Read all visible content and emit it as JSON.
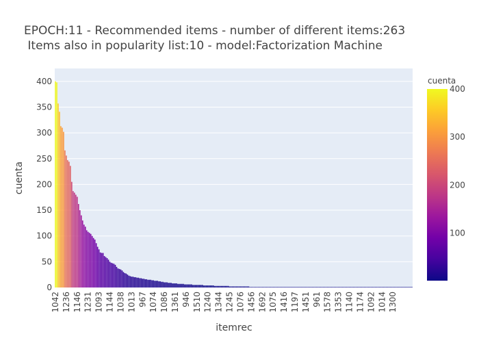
{
  "chart_data": {
    "type": "bar",
    "title_lines": [
      "EPOCH:11 - Recommended items - number of different items:263",
      " Items also in popularity list:10 - model:Factorization Machine"
    ],
    "xlabel": "itemrec",
    "ylabel": "cuenta",
    "ylim": [
      0,
      425
    ],
    "y_ticks": [
      0,
      50,
      100,
      150,
      200,
      250,
      300,
      350,
      400
    ],
    "x_tick_labels": [
      "1042",
      "1236",
      "1146",
      "1231",
      "1093",
      "1144",
      "1038",
      "1013",
      "967",
      "1074",
      "1086",
      "1361",
      "946",
      "1510",
      "1240",
      "1344",
      "1245",
      "1076",
      "1456",
      "1692",
      "1075",
      "1416",
      "1197",
      "1451",
      "961",
      "1578",
      "1353",
      "1140",
      "1174",
      "1092",
      "1014",
      "1300"
    ],
    "n_bars": 263,
    "head_values": [
      400,
      398,
      357,
      341,
      313,
      310,
      302,
      266,
      256,
      247,
      244,
      236,
      205,
      187,
      184,
      180,
      176,
      162,
      150,
      140,
      130,
      122,
      118,
      111,
      108,
      106,
      104,
      100,
      96,
      93,
      86,
      79,
      74,
      68,
      67,
      67,
      61,
      59,
      57,
      54,
      50,
      48,
      47,
      46,
      44,
      40,
      37,
      36,
      35,
      33,
      30,
      28,
      27,
      25,
      23,
      22,
      21,
      21,
      20,
      20,
      19,
      19,
      18,
      18,
      17,
      17,
      16,
      16,
      15,
      15,
      15,
      14,
      14,
      13,
      13,
      13,
      12,
      12,
      11,
      11,
      10,
      10,
      10,
      9,
      9,
      9,
      8,
      8,
      8,
      8,
      7,
      7,
      7,
      7,
      7,
      6,
      6,
      6,
      6,
      6,
      6,
      5,
      5,
      5,
      5,
      5,
      5,
      5,
      5,
      4,
      4,
      4,
      4,
      4,
      4,
      4,
      4,
      3,
      3,
      3,
      3,
      3,
      3,
      3,
      3,
      3,
      3,
      3,
      2,
      2,
      2,
      2,
      2,
      2,
      2,
      2,
      2,
      2,
      2,
      2,
      2,
      2,
      2
    ],
    "tail_value": 1,
    "colorbar": {
      "title": "cuenta",
      "ticks": [
        100,
        200,
        300,
        400
      ],
      "range": [
        1,
        400
      ],
      "colors": [
        "#0d0887",
        "#46039f",
        "#7201a8",
        "#9c179e",
        "#bd3786",
        "#d8576b",
        "#ed7953",
        "#fb9f3a",
        "#fdca26",
        "#f0f921"
      ]
    },
    "plot_bg": "#e5ecf6",
    "grid": true
  }
}
